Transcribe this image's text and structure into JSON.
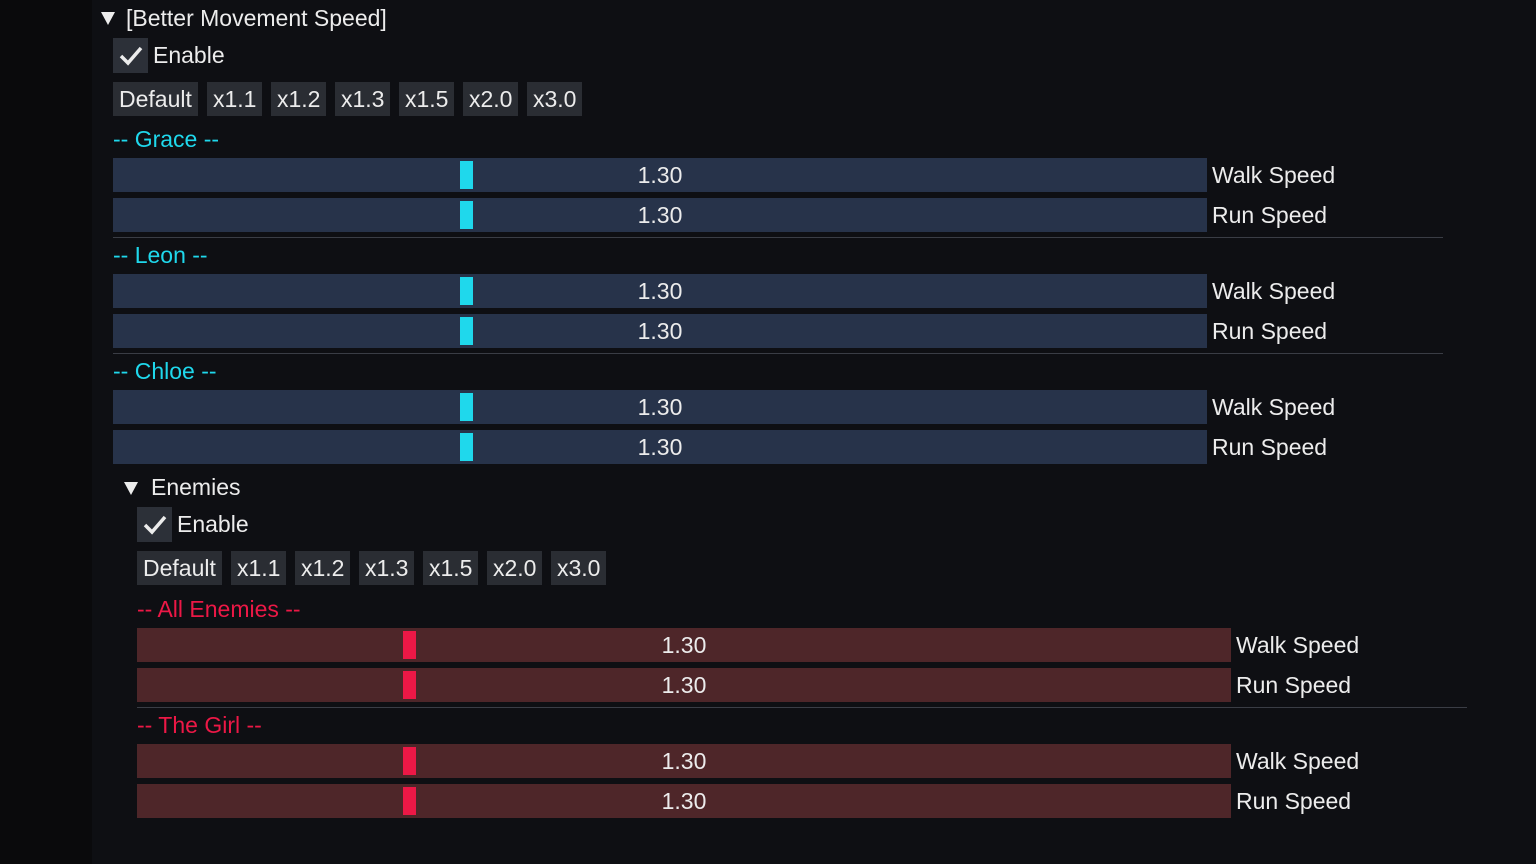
{
  "header": {
    "title": "[Better Movement Speed]"
  },
  "enable": "Enable",
  "presets": [
    "Default",
    "x1.1",
    "x1.2",
    "x1.3",
    "x1.5",
    "x2.0",
    "x3.0"
  ],
  "groups": [
    {
      "title": "-- Grace --",
      "sliders": [
        {
          "value": "1.30",
          "label": "Walk Speed"
        },
        {
          "value": "1.30",
          "label": "Run Speed"
        }
      ]
    },
    {
      "title": "-- Leon --",
      "sliders": [
        {
          "value": "1.30",
          "label": "Walk Speed"
        },
        {
          "value": "1.30",
          "label": "Run Speed"
        }
      ]
    },
    {
      "title": "-- Chloe --",
      "sliders": [
        {
          "value": "1.30",
          "label": "Walk Speed"
        },
        {
          "value": "1.30",
          "label": "Run Speed"
        }
      ]
    }
  ],
  "enemies": {
    "title": "Enemies",
    "enable": "Enable",
    "presets": [
      "Default",
      "x1.1",
      "x1.2",
      "x1.3",
      "x1.5",
      "x2.0",
      "x3.0"
    ],
    "groups": [
      {
        "title": "-- All Enemies --",
        "sliders": [
          {
            "value": "1.30",
            "label": "Walk Speed"
          },
          {
            "value": "1.30",
            "label": "Run Speed"
          }
        ]
      },
      {
        "title": "-- The Girl --",
        "sliders": [
          {
            "value": "1.30",
            "label": "Walk Speed"
          },
          {
            "value": "1.30",
            "label": "Run Speed"
          }
        ]
      }
    ]
  }
}
